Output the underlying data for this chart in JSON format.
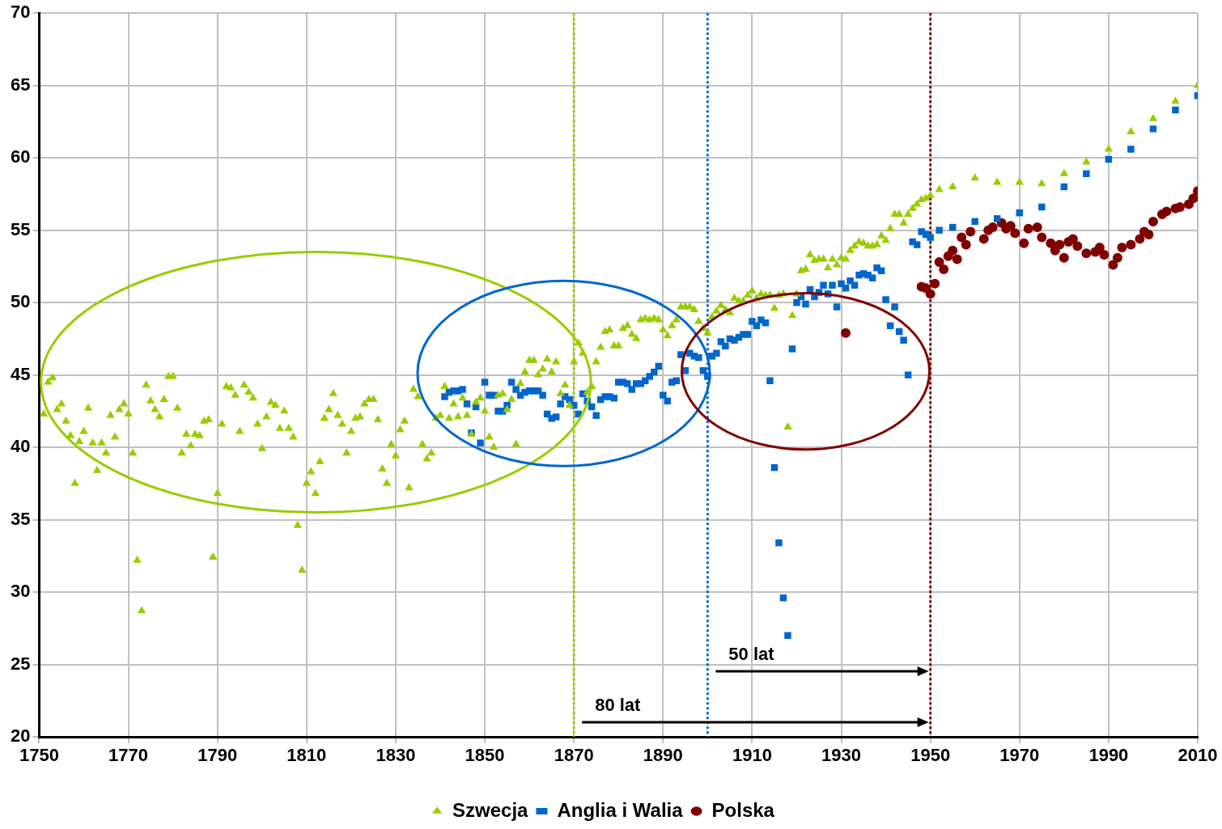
{
  "chart_data": {
    "type": "scatter",
    "xlim": [
      1750,
      2010
    ],
    "xticks": [
      1750,
      1770,
      1790,
      1810,
      1830,
      1850,
      1870,
      1890,
      1910,
      1930,
      1950,
      1970,
      1990,
      2010
    ],
    "ylim": [
      20,
      70
    ],
    "yticks": [
      20,
      25,
      30,
      35,
      40,
      45,
      50,
      55,
      60,
      65,
      70
    ],
    "grid": true,
    "legend": "bottom",
    "series": [
      {
        "name": "Szwecja",
        "color": "#99cc00",
        "marker": "triangle",
        "x": [
          1751,
          1752,
          1753,
          1754,
          1755,
          1756,
          1757,
          1758,
          1759,
          1760,
          1761,
          1762,
          1763,
          1764,
          1765,
          1766,
          1767,
          1768,
          1769,
          1770,
          1771,
          1772,
          1773,
          1774,
          1775,
          1776,
          1777,
          1778,
          1779,
          1780,
          1781,
          1782,
          1783,
          1784,
          1785,
          1786,
          1787,
          1788,
          1789,
          1790,
          1791,
          1792,
          1793,
          1794,
          1795,
          1796,
          1797,
          1798,
          1799,
          1800,
          1801,
          1802,
          1803,
          1804,
          1805,
          1806,
          1807,
          1808,
          1809,
          1810,
          1811,
          1812,
          1813,
          1814,
          1815,
          1816,
          1817,
          1818,
          1819,
          1820,
          1821,
          1822,
          1823,
          1824,
          1825,
          1826,
          1827,
          1828,
          1829,
          1830,
          1831,
          1832,
          1833,
          1834,
          1835,
          1836,
          1837,
          1838,
          1839,
          1840,
          1841,
          1842,
          1843,
          1844,
          1845,
          1846,
          1847,
          1848,
          1849,
          1850,
          1851,
          1852,
          1853,
          1854,
          1855,
          1856,
          1857,
          1858,
          1859,
          1860,
          1861,
          1862,
          1863,
          1864,
          1865,
          1866,
          1867,
          1868,
          1869,
          1870,
          1871,
          1872,
          1873,
          1874,
          1875,
          1876,
          1877,
          1878,
          1879,
          1880,
          1881,
          1882,
          1883,
          1884,
          1885,
          1886,
          1887,
          1888,
          1889,
          1890,
          1891,
          1892,
          1893,
          1894,
          1895,
          1896,
          1897,
          1898,
          1899,
          1900,
          1901,
          1902,
          1903,
          1904,
          1905,
          1906,
          1907,
          1908,
          1909,
          1910,
          1911,
          1912,
          1913,
          1914,
          1915,
          1916,
          1917,
          1918,
          1919,
          1920,
          1921,
          1922,
          1923,
          1924,
          1925,
          1926,
          1927,
          1928,
          1929,
          1930,
          1931,
          1932,
          1933,
          1934,
          1935,
          1936,
          1937,
          1938,
          1939,
          1940,
          1941,
          1942,
          1943,
          1944,
          1945,
          1946,
          1947,
          1948,
          1949,
          1950,
          1952,
          1955,
          1960,
          1965,
          1970,
          1975,
          1980,
          1985,
          1990,
          1995,
          2000,
          2005,
          2010
        ],
        "values": [
          42.3,
          44.5,
          44.8,
          42.6,
          43.0,
          41.8,
          40.8,
          37.5,
          40.4,
          41.1,
          42.7,
          40.3,
          38.4,
          40.3,
          39.6,
          42.2,
          40.7,
          42.6,
          43.0,
          42.3,
          39.6,
          32.2,
          28.7,
          44.3,
          43.2,
          42.6,
          42.1,
          43.3,
          44.9,
          44.9,
          42.7,
          39.6,
          40.9,
          40.1,
          40.9,
          40.8,
          41.8,
          41.9,
          32.4,
          36.8,
          41.6,
          44.2,
          44.1,
          43.6,
          41.1,
          44.3,
          43.8,
          43.4,
          41.6,
          39.9,
          42.1,
          43.1,
          42.9,
          41.3,
          42.5,
          41.3,
          40.7,
          34.6,
          31.5,
          37.5,
          38.3,
          36.8,
          39.0,
          42.0,
          42.6,
          43.7,
          42.2,
          41.6,
          39.6,
          41.1,
          42.0,
          42.1,
          43.0,
          43.3,
          43.3,
          41.9,
          38.5,
          37.5,
          40.2,
          39.4,
          41.2,
          41.8,
          37.2,
          44.0,
          43.5,
          40.2,
          39.2,
          39.6,
          42.0,
          42.2,
          44.2,
          42.0,
          43.0,
          42.1,
          43.4,
          42.2,
          40.9,
          43.1,
          43.4,
          42.5,
          40.7,
          40.0,
          43.6,
          43.7,
          42.6,
          43.3,
          40.2,
          44.4,
          45.2,
          46.0,
          46.0,
          45.0,
          45.4,
          46.1,
          45.2,
          45.9,
          43.7,
          44.3,
          42.9,
          45.9,
          47.2,
          46.5,
          43.8,
          44.2,
          45.9,
          46.9,
          48.0,
          48.1,
          47.0,
          47.0,
          48.2,
          48.4,
          47.8,
          47.5,
          48.8,
          48.9,
          48.8,
          48.9,
          48.8,
          48.1,
          47.7,
          48.4,
          48.8,
          49.7,
          49.7,
          49.7,
          49.5,
          48.7,
          48.2,
          47.9,
          49.0,
          49.4,
          49.8,
          49.5,
          49.3,
          50.3,
          50.1,
          50.1,
          50.5,
          50.8,
          50.3,
          50.6,
          50.5,
          50.5,
          49.6,
          50.5,
          50.6,
          41.4,
          49.1,
          50.6,
          52.2,
          52.3,
          53.3,
          52.9,
          53.0,
          53.0,
          52.4,
          53.0,
          52.6,
          53.1,
          53.0,
          53.6,
          53.9,
          54.2,
          54.1,
          53.9,
          53.9,
          54.0,
          54.6,
          54.3,
          55.1,
          56.1,
          56.1,
          55.5,
          56.1,
          56.5,
          56.8,
          57.1,
          57.2,
          57.4,
          57.8,
          58.0,
          58.6,
          58.3,
          58.3,
          58.2,
          58.9,
          59.7,
          60.6,
          61.8,
          62.7,
          63.9,
          65.0
        ]
      },
      {
        "name": "Anglia i Walia",
        "color": "#0066cc",
        "marker": "square",
        "x": [
          1841,
          1842,
          1843,
          1844,
          1845,
          1846,
          1847,
          1848,
          1849,
          1850,
          1851,
          1852,
          1853,
          1854,
          1855,
          1856,
          1857,
          1858,
          1859,
          1860,
          1861,
          1862,
          1863,
          1864,
          1865,
          1866,
          1867,
          1868,
          1869,
          1870,
          1871,
          1872,
          1873,
          1874,
          1875,
          1876,
          1877,
          1878,
          1879,
          1880,
          1881,
          1882,
          1883,
          1884,
          1885,
          1886,
          1887,
          1888,
          1889,
          1890,
          1891,
          1892,
          1893,
          1894,
          1895,
          1896,
          1897,
          1898,
          1899,
          1900,
          1901,
          1902,
          1903,
          1904,
          1905,
          1906,
          1907,
          1908,
          1909,
          1910,
          1911,
          1912,
          1913,
          1914,
          1915,
          1916,
          1917,
          1918,
          1919,
          1920,
          1921,
          1922,
          1923,
          1924,
          1925,
          1926,
          1927,
          1928,
          1929,
          1930,
          1931,
          1932,
          1933,
          1934,
          1935,
          1936,
          1937,
          1938,
          1939,
          1940,
          1941,
          1942,
          1943,
          1944,
          1945,
          1946,
          1947,
          1948,
          1949,
          1950,
          1952,
          1955,
          1960,
          1965,
          1970,
          1975,
          1980,
          1985,
          1990,
          1995,
          2000,
          2005,
          2010
        ],
        "values": [
          43.5,
          43.8,
          43.9,
          43.9,
          44.0,
          43.0,
          41.0,
          42.8,
          40.3,
          44.5,
          43.6,
          43.6,
          42.5,
          42.5,
          42.9,
          44.5,
          44.0,
          43.6,
          43.8,
          43.9,
          43.9,
          43.9,
          43.6,
          42.3,
          42.0,
          42.1,
          43.0,
          43.5,
          43.3,
          42.9,
          42.3,
          43.7,
          43.2,
          42.8,
          42.2,
          43.3,
          43.5,
          43.5,
          43.4,
          44.5,
          44.5,
          44.4,
          44.0,
          44.4,
          44.4,
          44.6,
          44.9,
          45.2,
          45.6,
          43.6,
          43.2,
          44.5,
          44.6,
          46.4,
          45.3,
          46.5,
          46.3,
          46.2,
          45.3,
          44.9,
          46.3,
          46.5,
          47.3,
          47.0,
          47.5,
          47.4,
          47.6,
          47.8,
          47.8,
          48.7,
          48.4,
          48.8,
          48.6,
          44.6,
          38.6,
          33.4,
          29.6,
          27.0,
          46.8,
          50.0,
          50.4,
          49.9,
          50.9,
          50.4,
          50.7,
          51.2,
          50.6,
          51.2,
          49.7,
          51.3,
          51.0,
          51.5,
          51.2,
          51.9,
          52.0,
          51.9,
          51.7,
          52.4,
          52.2,
          50.2,
          48.4,
          49.7,
          48.0,
          47.4,
          45.0,
          54.2,
          54.0,
          54.9,
          54.7,
          54.5,
          55.0,
          55.2,
          55.6,
          55.8,
          56.2,
          56.6,
          58.0,
          58.9,
          59.9,
          60.6,
          62.0,
          63.3,
          64.3
        ]
      },
      {
        "name": "Polska",
        "color": "#800000",
        "marker": "circle",
        "x": [
          1931,
          1948,
          1949,
          1950,
          1951,
          1952,
          1953,
          1954,
          1955,
          1956,
          1957,
          1958,
          1959,
          1962,
          1963,
          1964,
          1966,
          1967,
          1968,
          1969,
          1971,
          1972,
          1974,
          1975,
          1977,
          1978,
          1979,
          1980,
          1981,
          1982,
          1983,
          1985,
          1987,
          1988,
          1989,
          1991,
          1992,
          1993,
          1995,
          1997,
          1998,
          1999,
          2000,
          2002,
          2003,
          2005,
          2006,
          2008,
          2009,
          2010
        ],
        "values": [
          47.9,
          51.1,
          51.0,
          50.6,
          51.3,
          52.8,
          52.3,
          53.2,
          53.6,
          53.0,
          54.5,
          54.0,
          54.9,
          54.4,
          55.0,
          55.2,
          55.5,
          55.1,
          55.3,
          54.8,
          54.1,
          55.1,
          55.2,
          54.5,
          54.1,
          53.6,
          54.0,
          53.1,
          54.2,
          54.4,
          53.9,
          53.4,
          53.5,
          53.8,
          53.3,
          52.6,
          53.1,
          53.8,
          54.0,
          54.4,
          54.9,
          54.7,
          55.6,
          56.1,
          56.3,
          56.5,
          56.6,
          56.8,
          57.2,
          57.7
        ]
      }
    ],
    "ref_lines": [
      {
        "axis": "x",
        "value": 1870,
        "color": "#99cc00",
        "line_style": "dotted"
      },
      {
        "axis": "x",
        "value": 1900,
        "color": "#0066cc",
        "line_style": "dotted"
      },
      {
        "axis": "x",
        "value": 1950,
        "color": "#800000",
        "line_style": "dotted"
      }
    ],
    "annotations": [
      "80 lat",
      "50 lat"
    ]
  }
}
